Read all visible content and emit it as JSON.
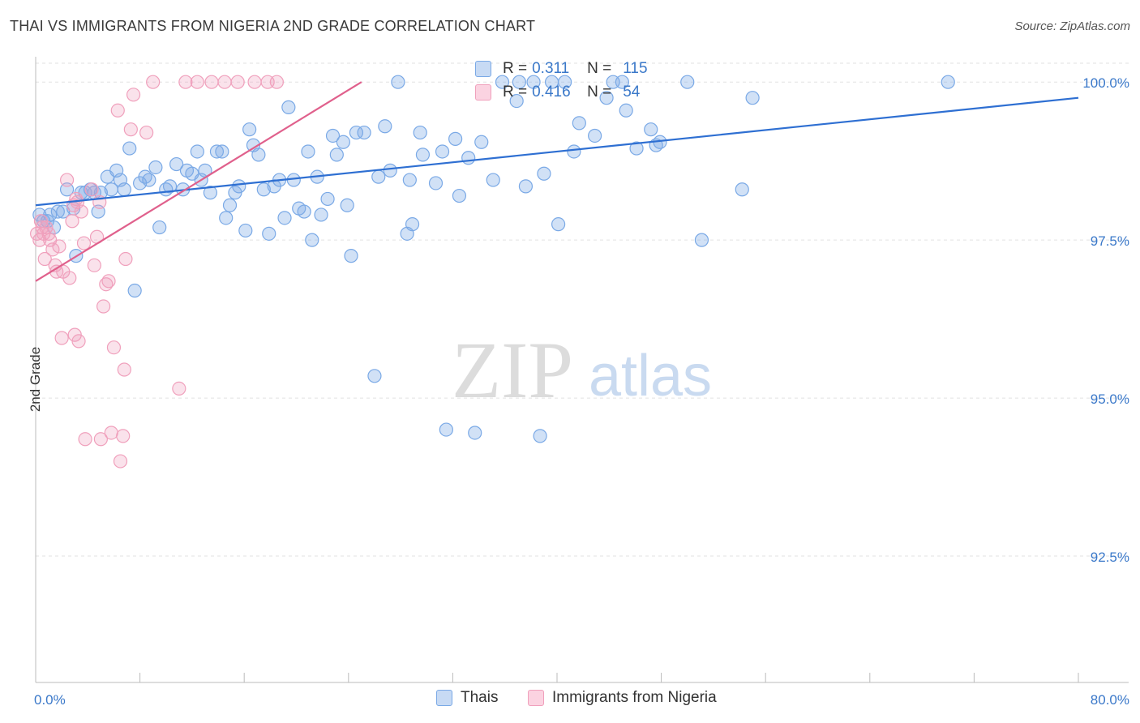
{
  "title": "THAI VS IMMIGRANTS FROM NIGERIA 2ND GRADE CORRELATION CHART",
  "source": "Source: ZipAtlas.com",
  "watermark": {
    "zip": "ZIP",
    "atlas": "atlas"
  },
  "stats": [
    {
      "r_label": "R =",
      "r_value": "0.311",
      "n_label": "N =",
      "n_value": "115",
      "color": "#7aa9e6"
    },
    {
      "r_label": "R =",
      "r_value": "0.416",
      "n_label": "N =",
      "n_value": "54",
      "color": "#f0a0bc"
    }
  ],
  "legend": [
    {
      "label": "Thais",
      "color": "#7aa9e6"
    },
    {
      "label": "Immigrants from Nigeria",
      "color": "#f0a0bc"
    }
  ],
  "chart_data": {
    "type": "scatter",
    "title": "THAI VS IMMIGRANTS FROM NIGERIA 2ND GRADE CORRELATION CHART",
    "xlabel": "",
    "ylabel": "2nd Grade",
    "xlim": [
      0,
      80
    ],
    "ylim": [
      90.5,
      100.4
    ],
    "x_tick_labels": [
      {
        "value": 0,
        "label": "0.0%"
      },
      {
        "value": 80,
        "label": "80.0%"
      }
    ],
    "y_ticks": [
      {
        "value": 100,
        "label": "100.0%"
      },
      {
        "value": 97.5,
        "label": "97.5%"
      },
      {
        "value": 95,
        "label": "95.0%"
      },
      {
        "value": 92.5,
        "label": "92.5%"
      }
    ],
    "series": [
      {
        "name": "Thais",
        "color": "#7aa9e6",
        "line_color": "#2e6fd2",
        "trend": {
          "x0": 0,
          "y0": 98.05,
          "x1": 80,
          "y1": 99.75
        },
        "points": [
          [
            0.3,
            97.9
          ],
          [
            0.6,
            97.8
          ],
          [
            0.9,
            97.8
          ],
          [
            1.1,
            97.9
          ],
          [
            1.4,
            97.7
          ],
          [
            1.7,
            97.95
          ],
          [
            2.1,
            97.95
          ],
          [
            2.4,
            98.3
          ],
          [
            2.9,
            98.0
          ],
          [
            3.1,
            97.25
          ],
          [
            3.5,
            98.25
          ],
          [
            3.8,
            98.25
          ],
          [
            4.2,
            98.3
          ],
          [
            4.5,
            98.25
          ],
          [
            4.8,
            97.95
          ],
          [
            5.0,
            98.25
          ],
          [
            5.5,
            98.5
          ],
          [
            5.8,
            98.3
          ],
          [
            6.2,
            98.6
          ],
          [
            6.5,
            98.45
          ],
          [
            6.8,
            98.3
          ],
          [
            7.2,
            98.95
          ],
          [
            7.6,
            96.7
          ],
          [
            8.0,
            98.4
          ],
          [
            8.4,
            98.5
          ],
          [
            8.7,
            98.45
          ],
          [
            9.2,
            98.65
          ],
          [
            9.5,
            97.7
          ],
          [
            10.0,
            98.3
          ],
          [
            10.3,
            98.35
          ],
          [
            10.8,
            98.7
          ],
          [
            11.3,
            98.3
          ],
          [
            11.6,
            98.6
          ],
          [
            12.0,
            98.55
          ],
          [
            12.4,
            98.9
          ],
          [
            12.7,
            98.45
          ],
          [
            13.0,
            98.6
          ],
          [
            13.4,
            98.25
          ],
          [
            13.9,
            98.9
          ],
          [
            14.3,
            98.9
          ],
          [
            14.6,
            97.85
          ],
          [
            14.9,
            98.05
          ],
          [
            15.3,
            98.25
          ],
          [
            15.6,
            98.35
          ],
          [
            16.1,
            97.65
          ],
          [
            16.4,
            99.25
          ],
          [
            16.7,
            99.0
          ],
          [
            17.1,
            98.85
          ],
          [
            17.5,
            98.3
          ],
          [
            17.9,
            97.6
          ],
          [
            18.3,
            98.35
          ],
          [
            18.7,
            98.45
          ],
          [
            19.1,
            97.85
          ],
          [
            19.4,
            99.6
          ],
          [
            19.8,
            98.45
          ],
          [
            20.2,
            98.0
          ],
          [
            20.6,
            97.95
          ],
          [
            20.9,
            98.9
          ],
          [
            21.2,
            97.5
          ],
          [
            21.6,
            98.5
          ],
          [
            21.9,
            97.9
          ],
          [
            22.4,
            98.15
          ],
          [
            22.8,
            99.15
          ],
          [
            23.1,
            98.85
          ],
          [
            23.6,
            99.05
          ],
          [
            23.9,
            98.05
          ],
          [
            24.2,
            97.25
          ],
          [
            24.6,
            99.2
          ],
          [
            25.2,
            99.2
          ],
          [
            26.0,
            95.35
          ],
          [
            26.3,
            98.5
          ],
          [
            26.8,
            99.3
          ],
          [
            27.2,
            98.6
          ],
          [
            27.8,
            100.0
          ],
          [
            28.5,
            97.6
          ],
          [
            28.7,
            98.45
          ],
          [
            28.9,
            97.75
          ],
          [
            29.5,
            99.2
          ],
          [
            29.7,
            98.85
          ],
          [
            30.7,
            98.4
          ],
          [
            31.2,
            98.9
          ],
          [
            31.5,
            94.5
          ],
          [
            32.2,
            99.1
          ],
          [
            32.5,
            98.2
          ],
          [
            33.2,
            98.8
          ],
          [
            33.7,
            94.45
          ],
          [
            34.2,
            99.05
          ],
          [
            35.1,
            98.45
          ],
          [
            35.8,
            100.0
          ],
          [
            36.9,
            99.7
          ],
          [
            37.1,
            100.0
          ],
          [
            37.6,
            98.35
          ],
          [
            38.2,
            100.0
          ],
          [
            38.7,
            94.4
          ],
          [
            39.0,
            98.55
          ],
          [
            39.6,
            100.0
          ],
          [
            40.1,
            97.75
          ],
          [
            40.6,
            100.0
          ],
          [
            41.3,
            98.9
          ],
          [
            41.7,
            99.35
          ],
          [
            42.9,
            99.15
          ],
          [
            43.8,
            99.75
          ],
          [
            44.3,
            100.0
          ],
          [
            45.0,
            100.0
          ],
          [
            45.3,
            99.55
          ],
          [
            46.1,
            98.95
          ],
          [
            47.2,
            99.25
          ],
          [
            47.6,
            99.0
          ],
          [
            47.9,
            99.05
          ],
          [
            50.0,
            100.0
          ],
          [
            51.1,
            97.5
          ],
          [
            54.2,
            98.3
          ],
          [
            55.0,
            99.75
          ],
          [
            70.0,
            100.0
          ]
        ]
      },
      {
        "name": "Immigrants from Nigeria",
        "color": "#f0a0bc",
        "line_color": "#e0608c",
        "trend": {
          "x0": 0,
          "y0": 96.85,
          "x1": 25,
          "y1": 100.0
        },
        "points": [
          [
            0.1,
            97.6
          ],
          [
            0.3,
            97.5
          ],
          [
            0.4,
            97.8
          ],
          [
            0.5,
            97.7
          ],
          [
            0.6,
            97.6
          ],
          [
            0.7,
            97.2
          ],
          [
            0.8,
            97.7
          ],
          [
            1.0,
            97.6
          ],
          [
            1.1,
            97.5
          ],
          [
            1.3,
            97.35
          ],
          [
            1.5,
            97.1
          ],
          [
            1.6,
            97.0
          ],
          [
            1.8,
            97.4
          ],
          [
            2.0,
            95.95
          ],
          [
            2.1,
            97.0
          ],
          [
            2.4,
            98.45
          ],
          [
            2.6,
            96.9
          ],
          [
            2.8,
            97.8
          ],
          [
            2.9,
            98.05
          ],
          [
            3.0,
            96.0
          ],
          [
            3.1,
            98.15
          ],
          [
            3.2,
            98.1
          ],
          [
            3.3,
            95.9
          ],
          [
            3.5,
            97.95
          ],
          [
            3.7,
            97.45
          ],
          [
            3.8,
            94.35
          ],
          [
            4.3,
            98.3
          ],
          [
            4.5,
            97.1
          ],
          [
            4.7,
            97.55
          ],
          [
            4.9,
            98.1
          ],
          [
            5.0,
            94.35
          ],
          [
            5.2,
            96.45
          ],
          [
            5.4,
            96.8
          ],
          [
            5.6,
            96.85
          ],
          [
            5.8,
            94.45
          ],
          [
            6.0,
            95.8
          ],
          [
            6.3,
            99.55
          ],
          [
            6.5,
            94.0
          ],
          [
            6.7,
            94.4
          ],
          [
            6.8,
            95.45
          ],
          [
            6.9,
            97.2
          ],
          [
            7.3,
            99.25
          ],
          [
            7.5,
            99.8
          ],
          [
            8.5,
            99.2
          ],
          [
            9.0,
            100.0
          ],
          [
            11.0,
            95.15
          ],
          [
            11.5,
            100.0
          ],
          [
            12.4,
            100.0
          ],
          [
            13.5,
            100.0
          ],
          [
            14.5,
            100.0
          ],
          [
            15.5,
            100.0
          ],
          [
            16.8,
            100.0
          ],
          [
            17.8,
            100.0
          ],
          [
            18.5,
            100.0
          ]
        ]
      }
    ]
  }
}
